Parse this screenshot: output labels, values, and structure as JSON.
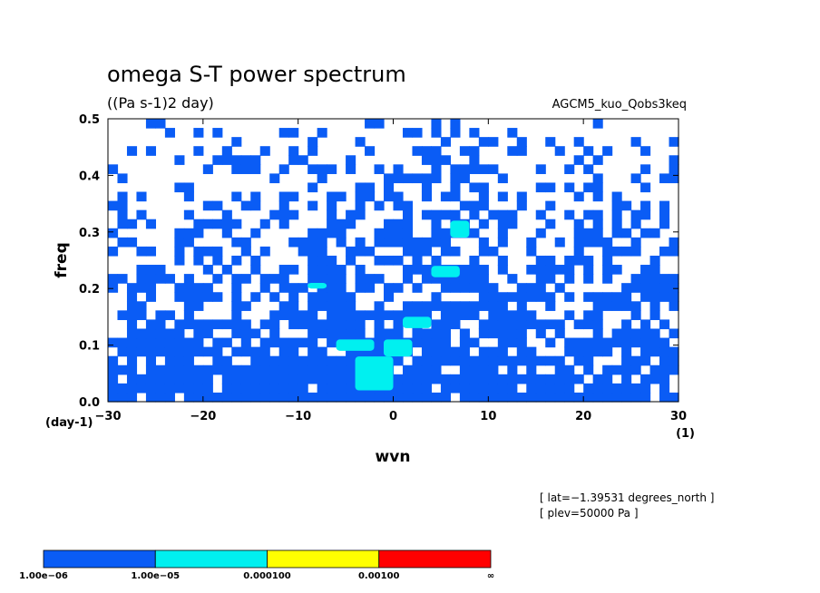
{
  "chart_data": {
    "type": "heatmap",
    "title": "omega S-T power spectrum",
    "units": "((Pa s-1)2 day)",
    "dataset": "AGCM5_kuo_Qobs3keq",
    "xlabel": "wvn",
    "ylabel": "freq",
    "x_unit": "(1)",
    "y_unit": "(day-1)",
    "xlim": [
      -30,
      30
    ],
    "ylim": [
      0,
      0.5
    ],
    "x_ticks": [
      "−30",
      "−20",
      "−10",
      "0",
      "10",
      "20",
      "30"
    ],
    "x_tick_values": [
      -30,
      -20,
      -10,
      0,
      10,
      20,
      30
    ],
    "y_ticks": [
      "0.0",
      "0.1",
      "0.2",
      "0.3",
      "0.4",
      "0.5"
    ],
    "y_tick_values": [
      0,
      0.1,
      0.2,
      0.3,
      0.4,
      0.5
    ],
    "info_lines": [
      "[ lat=−1.39531 degrees_north ]",
      "[ plev=50000 Pa ]"
    ],
    "levels": [
      "1.00e−06",
      "1.00e−05",
      "0.000100",
      "0.00100",
      "∞"
    ],
    "level_colors": [
      "#0a5cf5",
      "#00f0f0",
      "#ffff00",
      "#ff0000"
    ],
    "grid": false,
    "legend": "bottom-left colorbar",
    "approx_field": {
      "x_step": 1,
      "y_step": 0.0161,
      "class_key": "0 = below 1.00e−06 (white), 1 = 1.00e−06–1.00e−05, 2 = 1.00e−05–0.000100",
      "cyan_regions": [
        {
          "x": [
            -4,
            0
          ],
          "y": [
            0.02,
            0.08
          ]
        },
        {
          "x": [
            -1,
            2
          ],
          "y": [
            0.08,
            0.11
          ]
        },
        {
          "x": [
            -6,
            -2
          ],
          "y": [
            0.09,
            0.11
          ]
        },
        {
          "x": [
            1,
            4
          ],
          "y": [
            0.13,
            0.15
          ]
        },
        {
          "x": [
            6,
            8
          ],
          "y": [
            0.29,
            0.32
          ]
        },
        {
          "x": [
            4,
            7
          ],
          "y": [
            0.22,
            0.24
          ]
        },
        {
          "x": [
            -9,
            -7
          ],
          "y": [
            0.2,
            0.21
          ]
        }
      ]
    }
  }
}
